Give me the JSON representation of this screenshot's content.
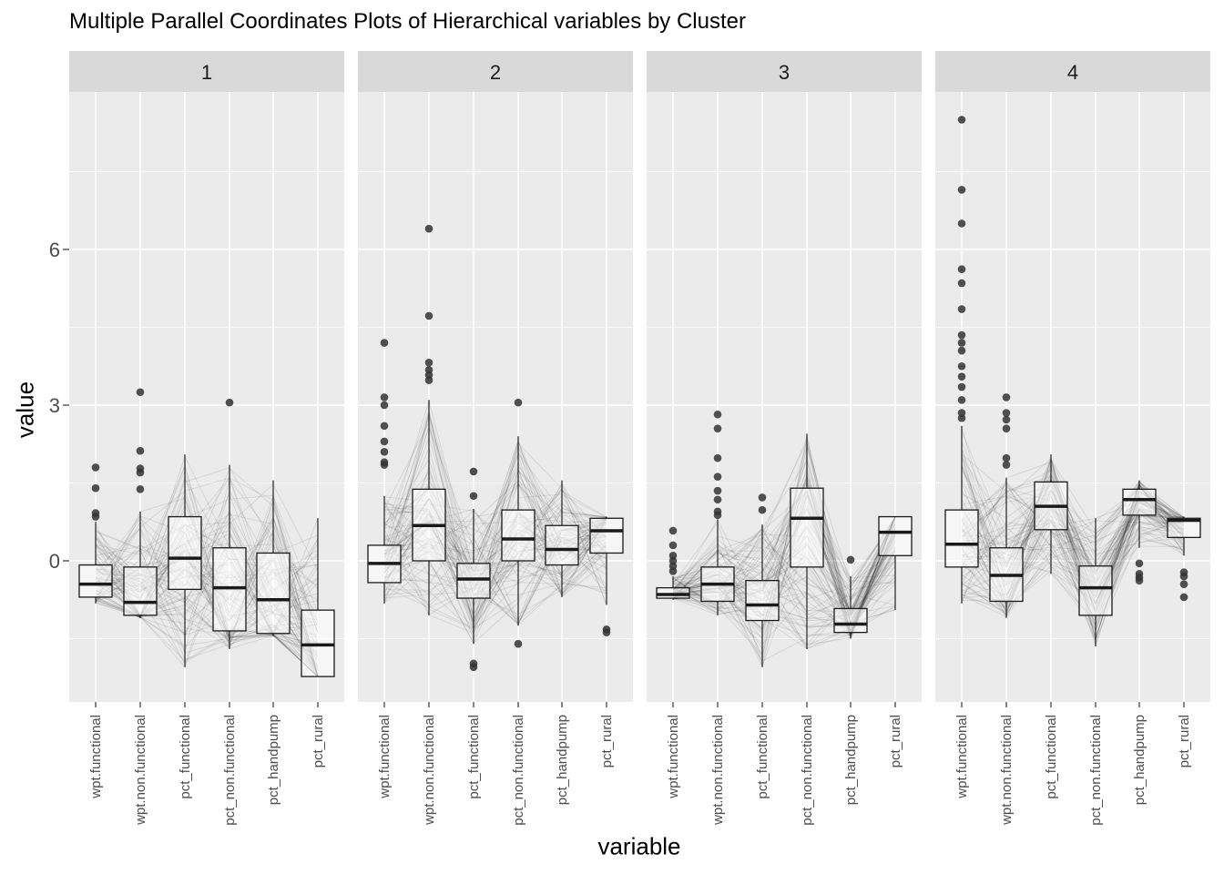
{
  "chart_data": {
    "type": "parallel_coordinates_with_boxplot",
    "title": "Multiple Parallel Coordinates Plots of Hierarchical variables by Cluster",
    "xlabel": "variable",
    "ylabel": "value",
    "ylim": [
      -2.7,
      8.8
    ],
    "y_ticks": [
      0,
      3,
      6
    ],
    "variables": [
      "wpt.functional",
      "wpt.non.functional",
      "pct_functional",
      "pct_non.functional",
      "pct_handpump",
      "pct_rural"
    ],
    "grid": true,
    "colors": {
      "panel_bg": "#ebebeb",
      "strip_bg": "#d9d9d9",
      "grid": "#ffffff",
      "line": "#000000",
      "box_fill": "#ffffff"
    },
    "facets": [
      {
        "label": "1",
        "boxes": [
          {
            "q1": -0.7,
            "median": -0.45,
            "q3": -0.08,
            "lower": -0.82,
            "upper": 0.75,
            "outliers": [
              1.8,
              1.4,
              0.92,
              0.85
            ]
          },
          {
            "q1": -1.05,
            "median": -0.8,
            "q3": -0.12,
            "lower": -1.1,
            "upper": 0.95,
            "outliers": [
              3.25,
              2.12,
              1.78,
              1.7,
              1.38
            ]
          },
          {
            "q1": -0.55,
            "median": 0.05,
            "q3": 0.85,
            "lower": -2.05,
            "upper": 2.05,
            "outliers": []
          },
          {
            "q1": -1.35,
            "median": -0.52,
            "q3": 0.25,
            "lower": -1.7,
            "upper": 1.85,
            "outliers": [
              3.05
            ]
          },
          {
            "q1": -1.4,
            "median": -0.75,
            "q3": 0.15,
            "lower": -1.45,
            "upper": 1.55,
            "outliers": []
          },
          {
            "q1": -2.23,
            "median": -1.62,
            "q3": -0.95,
            "lower": -2.23,
            "upper": 0.82,
            "outliers": []
          }
        ]
      },
      {
        "label": "2",
        "boxes": [
          {
            "q1": -0.42,
            "median": -0.05,
            "q3": 0.3,
            "lower": -0.82,
            "upper": 1.25,
            "outliers": [
              4.2,
              3.15,
              3.0,
              2.6,
              2.3,
              2.1,
              1.9,
              1.85
            ]
          },
          {
            "q1": 0.0,
            "median": 0.68,
            "q3": 1.38,
            "lower": -1.05,
            "upper": 3.1,
            "outliers": [
              6.4,
              4.72,
              3.82,
              3.68,
              3.58,
              3.48
            ]
          },
          {
            "q1": -0.72,
            "median": -0.35,
            "q3": -0.05,
            "lower": -1.6,
            "upper": 1.0,
            "outliers": [
              1.72,
              1.25,
              -1.98,
              -2.05
            ]
          },
          {
            "q1": 0.0,
            "median": 0.42,
            "q3": 0.98,
            "lower": -1.25,
            "upper": 2.4,
            "outliers": [
              3.05,
              -1.6
            ]
          },
          {
            "q1": -0.08,
            "median": 0.22,
            "q3": 0.68,
            "lower": -0.7,
            "upper": 1.55,
            "outliers": []
          },
          {
            "q1": 0.15,
            "median": 0.58,
            "q3": 0.82,
            "lower": -0.85,
            "upper": 0.85,
            "outliers": [
              -1.32,
              -1.38
            ]
          }
        ]
      },
      {
        "label": "3",
        "boxes": [
          {
            "q1": -0.72,
            "median": -0.65,
            "q3": -0.52,
            "lower": -0.75,
            "upper": -0.3,
            "outliers": [
              0.58,
              0.3,
              0.1,
              0.0,
              -0.1,
              -0.2
            ]
          },
          {
            "q1": -0.78,
            "median": -0.45,
            "q3": -0.12,
            "lower": -1.05,
            "upper": 0.8,
            "outliers": [
              2.82,
              2.55,
              1.98,
              1.62,
              1.35,
              1.18,
              0.95,
              0.88
            ]
          },
          {
            "q1": -1.15,
            "median": -0.85,
            "q3": -0.38,
            "lower": -2.05,
            "upper": 0.7,
            "outliers": [
              1.22,
              0.98
            ]
          },
          {
            "q1": -0.12,
            "median": 0.82,
            "q3": 1.4,
            "lower": -1.7,
            "upper": 2.45,
            "outliers": []
          },
          {
            "q1": -1.38,
            "median": -1.22,
            "q3": -0.92,
            "lower": -1.5,
            "upper": -0.3,
            "outliers": [
              0.02
            ]
          },
          {
            "q1": 0.1,
            "median": 0.55,
            "q3": 0.85,
            "lower": -0.95,
            "upper": 0.85,
            "outliers": []
          }
        ]
      },
      {
        "label": "4",
        "boxes": [
          {
            "q1": -0.12,
            "median": 0.32,
            "q3": 0.98,
            "lower": -0.82,
            "upper": 2.6,
            "outliers": [
              8.5,
              7.15,
              6.5,
              5.62,
              5.35,
              4.85,
              4.35,
              4.2,
              4.05,
              3.75,
              3.55,
              3.35,
              3.1,
              2.85,
              2.75
            ]
          },
          {
            "q1": -0.78,
            "median": -0.28,
            "q3": 0.25,
            "lower": -1.1,
            "upper": 1.6,
            "outliers": [
              3.15,
              2.85,
              2.72,
              2.55,
              1.98,
              1.85
            ]
          },
          {
            "q1": 0.6,
            "median": 1.05,
            "q3": 1.52,
            "lower": -0.25,
            "upper": 2.05,
            "outliers": []
          },
          {
            "q1": -1.05,
            "median": -0.52,
            "q3": -0.1,
            "lower": -1.65,
            "upper": 0.82,
            "outliers": []
          },
          {
            "q1": 0.88,
            "median": 1.18,
            "q3": 1.38,
            "lower": 0.25,
            "upper": 1.55,
            "outliers": [
              -0.05,
              -0.25,
              -0.32,
              -0.38
            ]
          },
          {
            "q1": 0.45,
            "median": 0.78,
            "q3": 0.82,
            "lower": 0.1,
            "upper": 0.85,
            "outliers": [
              -0.22,
              -0.3,
              -0.45,
              -0.7
            ]
          }
        ]
      }
    ]
  }
}
